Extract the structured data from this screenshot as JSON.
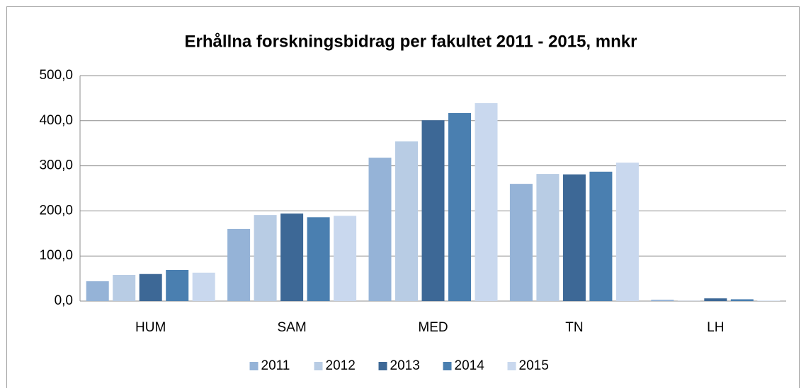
{
  "chart_data": {
    "type": "bar",
    "title": "Erhållna forskningsbidrag per fakultet 2011 - 2015, mnkr",
    "categories": [
      "HUM",
      "SAM",
      "MED",
      "TN",
      "LH"
    ],
    "series": [
      {
        "name": "2011",
        "color": "#95b3d7",
        "values": [
          44,
          160,
          318,
          260,
          3
        ]
      },
      {
        "name": "2012",
        "color": "#b8cce4",
        "values": [
          58,
          191,
          354,
          282,
          0.5
        ]
      },
      {
        "name": "2013",
        "color": "#3d6896",
        "values": [
          60,
          194,
          401,
          281,
          6
        ]
      },
      {
        "name": "2014",
        "color": "#4a7fb0",
        "values": [
          69,
          186,
          417,
          287,
          4
        ]
      },
      {
        "name": "2015",
        "color": "#c9d8ee",
        "values": [
          63,
          189,
          439,
          307,
          1
        ]
      }
    ],
    "ylim": [
      0,
      500
    ],
    "yticks": [
      {
        "value": 0,
        "label": "0,0"
      },
      {
        "value": 100,
        "label": "100,0"
      },
      {
        "value": 200,
        "label": "200,0"
      },
      {
        "value": 300,
        "label": "300,0"
      },
      {
        "value": 400,
        "label": "400,0"
      },
      {
        "value": 500,
        "label": "500,0"
      }
    ],
    "grid": true,
    "legend": "bottom"
  }
}
